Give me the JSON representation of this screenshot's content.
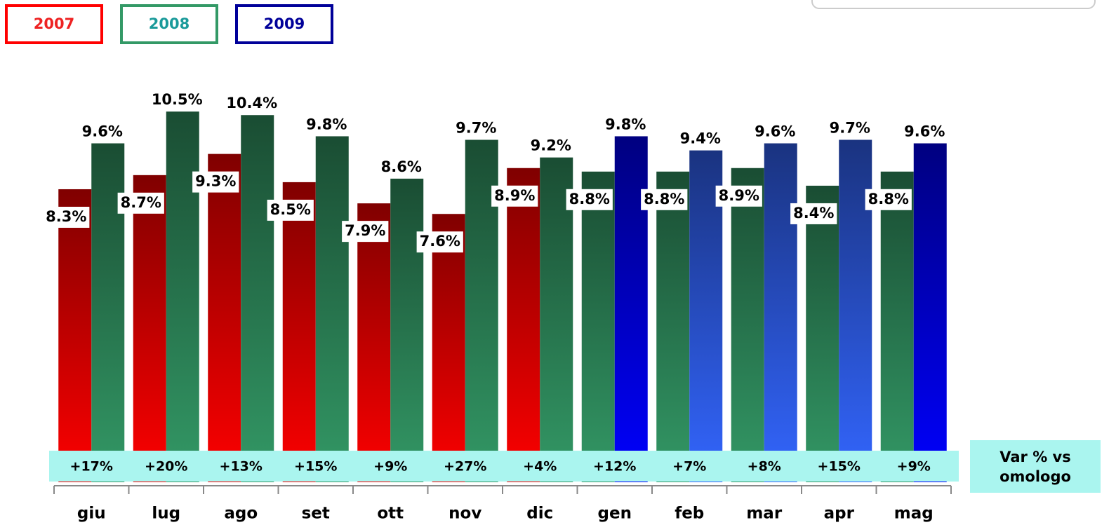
{
  "chart_data": {
    "type": "bar",
    "categories": [
      "giu",
      "lug",
      "ago",
      "set",
      "ott",
      "nov",
      "dic",
      "gen",
      "feb",
      "mar",
      "apr",
      "mag"
    ],
    "legend": [
      {
        "name": "2007",
        "color": "#ff0000",
        "text_color": "#ee2222"
      },
      {
        "name": "2008",
        "color": "#339966",
        "text_color": "#1a9a9a"
      },
      {
        "name": "2009",
        "color": "#000099",
        "text_color": "#000099"
      }
    ],
    "series": [
      {
        "values": [
          8.3,
          8.7,
          9.3,
          8.5,
          7.9,
          7.6,
          8.9,
          8.8,
          8.8,
          8.9,
          8.4,
          8.8
        ],
        "value_labels": [
          "8.3%",
          "8.7%",
          "9.3%",
          "8.5%",
          "7.9%",
          "7.6%",
          "8.9%",
          "8.8%",
          "8.8%",
          "8.9%",
          "8.4%",
          "8.8%"
        ],
        "colors": [
          "#ff0000",
          "#ff0000",
          "#ff0000",
          "#ff0000",
          "#ff0000",
          "#ff0000",
          "#ff0000",
          "#339966",
          "#339966",
          "#339966",
          "#339966",
          "#339966"
        ]
      },
      {
        "values": [
          9.6,
          10.5,
          10.4,
          9.8,
          8.6,
          9.7,
          9.2,
          9.8,
          9.4,
          9.6,
          9.7,
          9.6
        ],
        "value_labels": [
          "9.6%",
          "10.5%",
          "10.4%",
          "9.8%",
          "8.6%",
          "9.7%",
          "9.2%",
          "9.8%",
          "9.4%",
          "9.6%",
          "9.7%",
          "9.6%"
        ],
        "colors": [
          "#339966",
          "#339966",
          "#339966",
          "#339966",
          "#339966",
          "#339966",
          "#339966",
          "#0000ff",
          "#3366ff",
          "#3366ff",
          "#3366ff",
          "#0000ff"
        ]
      }
    ],
    "ylim": [
      0,
      11
    ],
    "variation": {
      "title": "Var % vs omologo",
      "values": [
        17,
        20,
        13,
        15,
        9,
        27,
        4,
        12,
        7,
        8,
        15,
        9
      ],
      "value_labels": [
        "+17%",
        "+20%",
        "+13%",
        "+15%",
        "+9%",
        "+27%",
        "+4%",
        "+12%",
        "+7%",
        "+8%",
        "+15%",
        "+9%"
      ]
    }
  }
}
